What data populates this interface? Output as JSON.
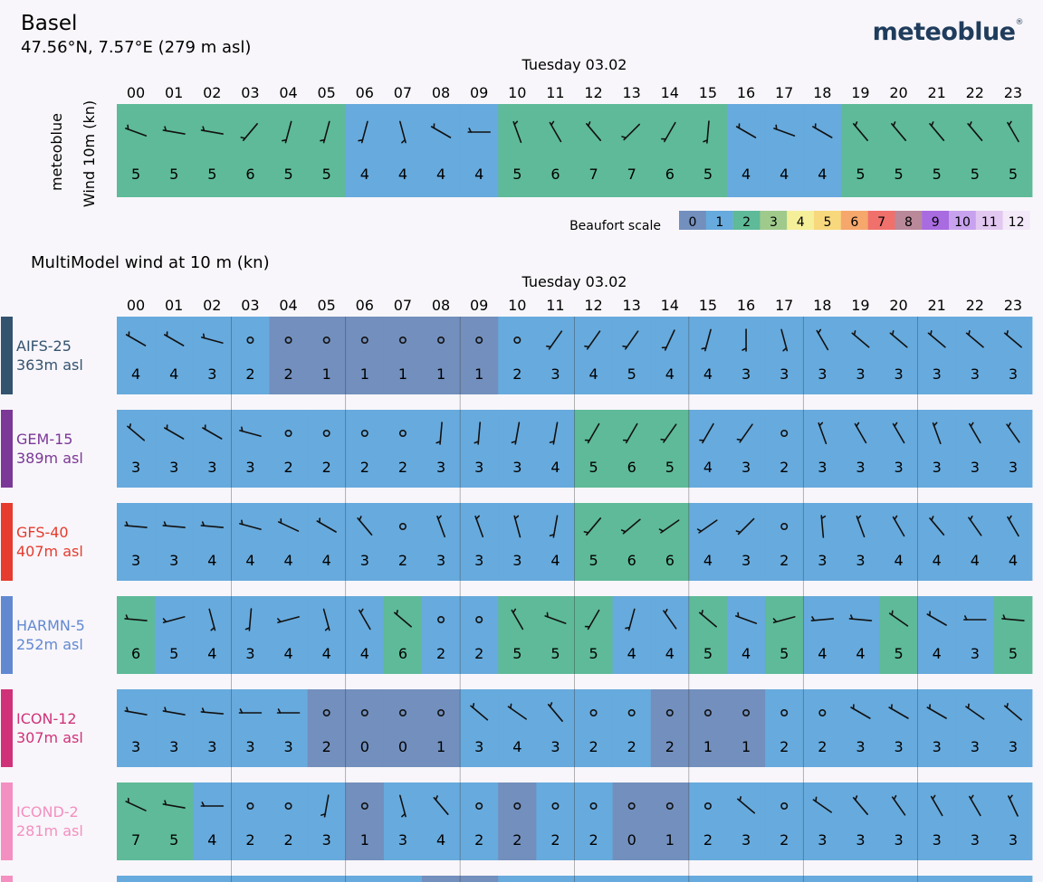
{
  "header": {
    "location": "Basel",
    "coordinates": "47.56°N, 7.57°E (279 m asl)",
    "brand": "meteoblue",
    "brand_mark": "®"
  },
  "colors": {
    "background": "#f8f6fa",
    "beaufort": [
      "#728fbd",
      "#67aadd",
      "#5eba98",
      "#a0ca8c",
      "#f5ef9a",
      "#f8d87d",
      "#f6a76c",
      "#f0706c",
      "#b98899",
      "#a96be0",
      "#c8a2ee",
      "#e2c7f0",
      "#f3e9f8"
    ]
  },
  "chart_data": [
    {
      "type": "table",
      "title": "",
      "date_label": "Tuesday 03.02",
      "hours": [
        "00",
        "01",
        "02",
        "03",
        "04",
        "05",
        "06",
        "07",
        "08",
        "09",
        "10",
        "11",
        "12",
        "13",
        "14",
        "15",
        "16",
        "17",
        "18",
        "19",
        "20",
        "21",
        "22",
        "23"
      ],
      "model_label": "meteoblue",
      "ylabel": "Wind 10m (kn)",
      "speed": [
        5,
        5,
        5,
        6,
        5,
        5,
        4,
        4,
        4,
        4,
        5,
        6,
        7,
        7,
        6,
        5,
        4,
        4,
        4,
        5,
        5,
        5,
        5,
        5
      ],
      "beaufort": [
        2,
        2,
        2,
        2,
        2,
        2,
        1,
        1,
        1,
        1,
        2,
        2,
        2,
        2,
        2,
        2,
        1,
        1,
        1,
        2,
        2,
        2,
        2,
        2
      ],
      "direction_deg": [
        290,
        280,
        280,
        220,
        195,
        195,
        195,
        165,
        300,
        270,
        340,
        330,
        320,
        225,
        210,
        185,
        300,
        290,
        300,
        320,
        320,
        320,
        320,
        330
      ]
    },
    {
      "type": "table",
      "title": "MultiModel wind at 10 m (kn)",
      "date_label": "Tuesday 03.02",
      "legend_label": "Beaufort scale",
      "legend": [
        "0",
        "1",
        "2",
        "3",
        "4",
        "5",
        "6",
        "7",
        "8",
        "9",
        "10",
        "11",
        "12"
      ],
      "hours": [
        "00",
        "01",
        "02",
        "03",
        "04",
        "05",
        "06",
        "07",
        "08",
        "09",
        "10",
        "11",
        "12",
        "13",
        "14",
        "15",
        "16",
        "17",
        "18",
        "19",
        "20",
        "21",
        "22",
        "23"
      ],
      "models": [
        {
          "name": "AIFS-25",
          "altitude": "363m asl",
          "color": "#34536f",
          "speed": [
            4,
            4,
            3,
            2,
            2,
            1,
            1,
            1,
            1,
            1,
            2,
            3,
            4,
            5,
            4,
            4,
            3,
            3,
            3,
            3,
            3,
            3,
            3,
            3
          ],
          "beaufort": [
            1,
            1,
            1,
            1,
            0,
            0,
            0,
            0,
            0,
            0,
            1,
            1,
            1,
            1,
            1,
            1,
            1,
            1,
            1,
            1,
            1,
            1,
            1,
            1
          ],
          "direction_deg": [
            300,
            300,
            285,
            null,
            null,
            null,
            null,
            null,
            null,
            null,
            null,
            215,
            215,
            215,
            205,
            195,
            180,
            165,
            330,
            310,
            310,
            310,
            310,
            310
          ]
        },
        {
          "name": "GEM-15",
          "altitude": "389m asl",
          "color": "#7b3897",
          "speed": [
            3,
            3,
            3,
            3,
            2,
            2,
            2,
            2,
            3,
            3,
            3,
            4,
            5,
            6,
            5,
            4,
            3,
            2,
            3,
            3,
            3,
            3,
            3,
            3
          ],
          "beaufort": [
            1,
            1,
            1,
            1,
            1,
            1,
            1,
            1,
            1,
            1,
            1,
            1,
            2,
            2,
            2,
            1,
            1,
            1,
            1,
            1,
            1,
            1,
            1,
            1
          ],
          "direction_deg": [
            310,
            300,
            300,
            285,
            null,
            null,
            null,
            null,
            185,
            185,
            190,
            190,
            210,
            210,
            215,
            210,
            215,
            null,
            340,
            330,
            330,
            340,
            330,
            325
          ]
        },
        {
          "name": "GFS-40",
          "altitude": "407m asl",
          "color": "#e63b2e",
          "speed": [
            3,
            3,
            4,
            4,
            4,
            4,
            3,
            2,
            3,
            3,
            3,
            4,
            5,
            6,
            6,
            4,
            3,
            2,
            3,
            3,
            4,
            4,
            4,
            4
          ],
          "beaufort": [
            1,
            1,
            1,
            1,
            1,
            1,
            1,
            1,
            1,
            1,
            1,
            1,
            2,
            2,
            2,
            1,
            1,
            1,
            1,
            1,
            1,
            1,
            1,
            1
          ],
          "direction_deg": [
            275,
            275,
            275,
            285,
            295,
            300,
            320,
            null,
            340,
            340,
            345,
            190,
            220,
            230,
            235,
            235,
            225,
            null,
            355,
            340,
            330,
            320,
            325,
            330
          ]
        },
        {
          "name": "HARMN-5",
          "altitude": "252m asl",
          "color": "#6288d2",
          "speed": [
            6,
            5,
            4,
            3,
            4,
            4,
            4,
            6,
            2,
            2,
            5,
            5,
            5,
            4,
            4,
            5,
            4,
            5,
            4,
            4,
            5,
            4,
            3,
            5
          ],
          "beaufort": [
            2,
            1,
            1,
            1,
            1,
            1,
            1,
            2,
            1,
            1,
            2,
            2,
            2,
            1,
            1,
            2,
            1,
            2,
            1,
            1,
            2,
            1,
            1,
            2
          ],
          "direction_deg": [
            275,
            255,
            165,
            185,
            255,
            165,
            330,
            310,
            null,
            null,
            330,
            290,
            210,
            195,
            325,
            310,
            290,
            255,
            265,
            275,
            305,
            300,
            270,
            275
          ]
        },
        {
          "name": "ICON-12",
          "altitude": "307m asl",
          "color": "#d0327a",
          "speed": [
            3,
            3,
            3,
            3,
            3,
            2,
            0,
            0,
            1,
            3,
            4,
            3,
            2,
            2,
            2,
            1,
            1,
            2,
            2,
            3,
            3,
            3,
            3,
            3
          ],
          "beaufort": [
            1,
            1,
            1,
            1,
            1,
            0,
            0,
            0,
            0,
            1,
            1,
            1,
            1,
            1,
            0,
            0,
            0,
            1,
            1,
            1,
            1,
            1,
            1,
            1
          ],
          "direction_deg": [
            280,
            280,
            275,
            270,
            270,
            null,
            null,
            null,
            null,
            310,
            305,
            320,
            null,
            null,
            null,
            null,
            null,
            null,
            null,
            300,
            300,
            300,
            305,
            310
          ]
        },
        {
          "name": "ICOND-2",
          "altitude": "281m asl",
          "color": "#f48fc1",
          "speed": [
            7,
            5,
            4,
            2,
            2,
            3,
            1,
            3,
            4,
            2,
            2,
            2,
            2,
            0,
            1,
            2,
            3,
            2,
            3,
            3,
            3,
            3,
            3,
            3
          ],
          "beaufort": [
            2,
            2,
            1,
            1,
            1,
            1,
            0,
            1,
            1,
            1,
            0,
            1,
            1,
            0,
            0,
            1,
            1,
            1,
            1,
            1,
            1,
            1,
            1,
            1
          ],
          "direction_deg": [
            295,
            280,
            270,
            null,
            null,
            190,
            null,
            165,
            320,
            null,
            null,
            null,
            null,
            null,
            null,
            null,
            310,
            null,
            305,
            320,
            325,
            330,
            330,
            335
          ]
        }
      ]
    }
  ]
}
